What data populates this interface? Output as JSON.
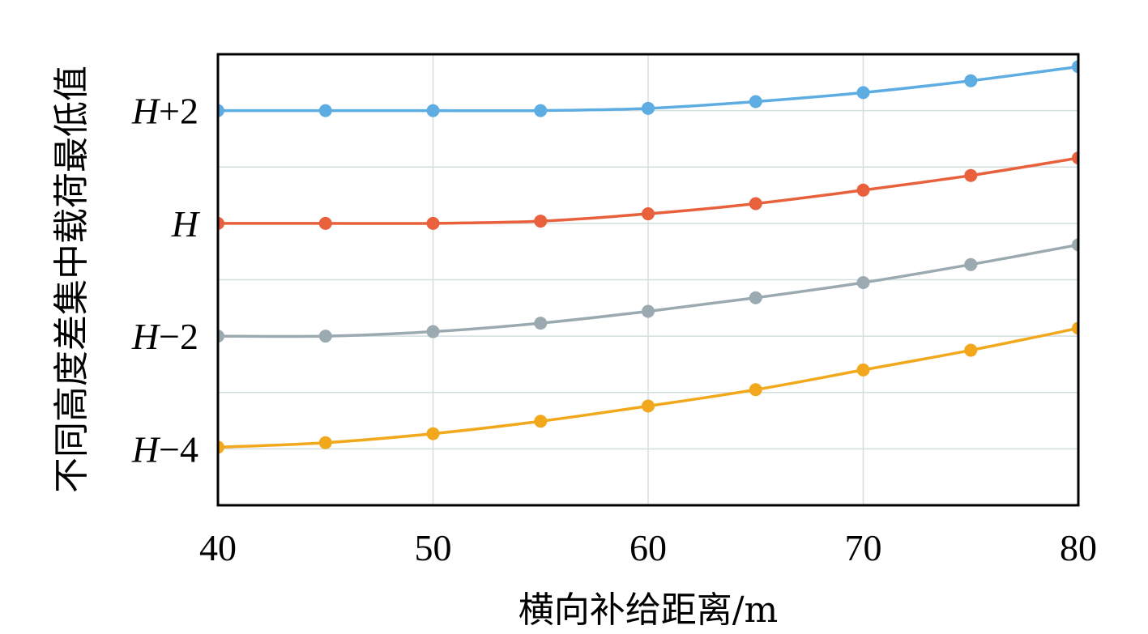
{
  "chart_data": {
    "type": "line",
    "xlabel": "横向补给距离/m",
    "ylabel": "不同高度差集中载荷最低值",
    "x": [
      40,
      45,
      50,
      55,
      60,
      65,
      70,
      75,
      80
    ],
    "xlim": [
      40,
      80
    ],
    "xticks": [
      "40",
      "50",
      "60",
      "70",
      "80"
    ],
    "xtick_values": [
      40,
      50,
      60,
      70,
      80
    ],
    "yticks": [
      {
        "value": 2,
        "prefix": "H",
        "suffix": "+2"
      },
      {
        "value": 0,
        "prefix": "H",
        "suffix": ""
      },
      {
        "value": -2,
        "prefix": "H",
        "suffix": "−2"
      },
      {
        "value": -4,
        "prefix": "H",
        "suffix": "−4"
      }
    ],
    "ylim": [
      -5,
      3
    ],
    "grid": true,
    "series": [
      {
        "key": "h_plus_2",
        "color": "#5DADE2",
        "values": [
          2.0,
          2.0,
          2.0,
          2.0,
          2.04,
          2.16,
          2.32,
          2.53,
          2.78
        ]
      },
      {
        "key": "h",
        "color": "#E8603C",
        "values": [
          0.0,
          0.0,
          0.0,
          0.04,
          0.17,
          0.35,
          0.59,
          0.85,
          1.16
        ]
      },
      {
        "key": "h_minus_2",
        "color": "#9AAAB0",
        "values": [
          -2.0,
          -2.0,
          -1.92,
          -1.77,
          -1.56,
          -1.32,
          -1.05,
          -0.73,
          -0.38
        ]
      },
      {
        "key": "h_minus_4",
        "color": "#F2A81D",
        "values": [
          -3.97,
          -3.89,
          -3.73,
          -3.51,
          -3.24,
          -2.95,
          -2.6,
          -2.25,
          -1.86
        ]
      }
    ]
  }
}
